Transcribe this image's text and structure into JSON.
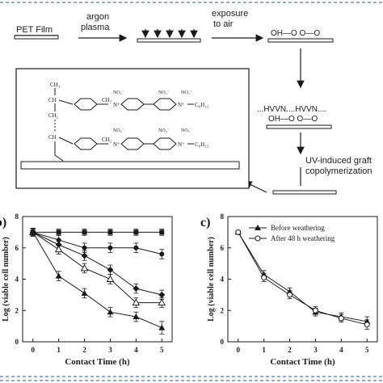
{
  "scheme": {
    "film_label": "PET Film",
    "step1_label_line1": "argon",
    "step1_label_line2": "plasma",
    "step2_label_line1": "exposure",
    "step2_label_line2": "to air",
    "peroxide_label": "OH—O  O—O",
    "monomer_label": "...HVVN....HVVN....",
    "grafted_surface_label": "OH—O  O—O",
    "step3_label_line1": "UV-induced graft",
    "step3_label_line2": "copolymerization",
    "structure_substituent_top": "C₆H₁₃",
    "structure_substituent_bottom": "C₆H₁₃",
    "structure_anion": "NO₃⁻",
    "structure_ch2": "CH₂",
    "structure_ch3": "CH₃",
    "structure_ch": "CH",
    "structure_n_plus": "N⁺"
  },
  "chart_data": [
    {
      "panel": "b",
      "panel_label": "b)",
      "type": "line",
      "xlabel": "Contact Time (h)",
      "ylabel": "Log (viable cell number)",
      "x": [
        0,
        1,
        2,
        3,
        4,
        5
      ],
      "xlim": [
        -0.4,
        5.4
      ],
      "ylim": [
        0,
        8
      ],
      "xticks": [
        "0",
        "1",
        "2",
        "3",
        "4",
        "5"
      ],
      "yticks": [
        "0",
        "2",
        "4",
        "6",
        "8"
      ],
      "series": [
        {
          "marker": "square",
          "values": [
            7.0,
            7.0,
            7.0,
            7.0,
            7.0,
            7.0
          ],
          "errors": [
            0.2,
            0.2,
            0.2,
            0.2,
            0.2,
            0.2
          ]
        },
        {
          "marker": "circle",
          "values": [
            7.0,
            6.5,
            6.0,
            6.0,
            6.0,
            5.6
          ],
          "errors": [
            0.25,
            0.3,
            0.3,
            0.3,
            0.3,
            0.3
          ]
        },
        {
          "marker": "diamond",
          "values": [
            7.0,
            6.2,
            5.5,
            4.6,
            3.4,
            3.0
          ],
          "errors": [
            0.25,
            0.3,
            0.3,
            0.3,
            0.3,
            0.3
          ]
        },
        {
          "marker": "open-triangle",
          "values": [
            7.0,
            5.9,
            4.7,
            4.0,
            2.5,
            2.5
          ],
          "errors": [
            0.25,
            0.3,
            0.3,
            0.3,
            0.3,
            0.3
          ]
        },
        {
          "marker": "filled-triangle",
          "values": [
            7.0,
            4.2,
            3.1,
            1.9,
            1.6,
            0.9
          ],
          "errors": [
            0.25,
            0.3,
            0.3,
            0.3,
            0.3,
            0.4
          ]
        }
      ]
    },
    {
      "panel": "c",
      "panel_label": "c)",
      "type": "line",
      "xlabel": "Contact Time (h)",
      "ylabel": "Log (viable cell number)",
      "x": [
        0,
        1,
        2,
        3,
        4,
        5
      ],
      "xlim": [
        -0.4,
        5.4
      ],
      "ylim": [
        0,
        8
      ],
      "xticks": [
        "0",
        "1",
        "2",
        "3",
        "4",
        "5"
      ],
      "yticks": [
        "0",
        "2",
        "4",
        "6",
        "8"
      ],
      "legend_position": "top-center",
      "series": [
        {
          "name": "Before weathering",
          "marker": "filled-triangle",
          "values": [
            7.0,
            4.3,
            3.2,
            1.9,
            1.6,
            1.3
          ],
          "errors": [
            0.1,
            0.25,
            0.25,
            0.25,
            0.25,
            0.3
          ]
        },
        {
          "name": "After 48 h weathering",
          "marker": "open-circle",
          "values": [
            7.0,
            4.1,
            3.0,
            2.0,
            1.5,
            1.1
          ],
          "errors": [
            0.1,
            0.25,
            0.25,
            0.25,
            0.25,
            0.3
          ]
        }
      ]
    }
  ]
}
